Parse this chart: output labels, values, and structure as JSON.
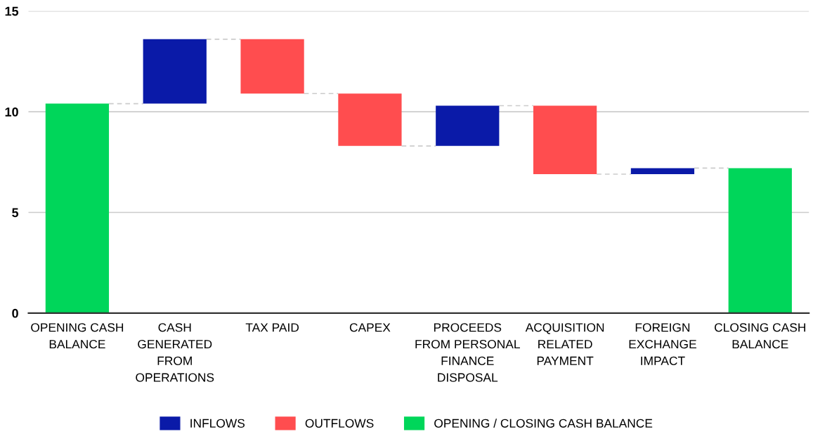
{
  "chart_data": {
    "type": "bar",
    "categories": [
      "OPENING CASH BALANCE",
      "CASH GENERATED FROM OPERATIONS",
      "TAX PAID",
      "CAPEX",
      "PROCEEDS FROM PERSONAL FINANCE DISPOSAL",
      "ACQUISITION RELATED PAYMENT",
      "FOREIGN EXCHANGE IMPACT",
      "CLOSING CASH BALANCE"
    ],
    "series": [
      {
        "name": "INFLOWS",
        "color": "#0a1aa8",
        "values": [
          null,
          3.2,
          null,
          null,
          2.0,
          null,
          0.3,
          null
        ],
        "base": [
          null,
          10.4,
          null,
          null,
          8.3,
          null,
          6.9,
          null
        ]
      },
      {
        "name": "OUTFLOWS",
        "color": "#ff4d4f",
        "values": [
          null,
          null,
          2.7,
          2.6,
          null,
          3.4,
          null,
          null
        ],
        "base": [
          null,
          null,
          10.9,
          8.3,
          null,
          6.9,
          null,
          null
        ]
      },
      {
        "name": "OPENING / CLOSING CASH BALANCE",
        "color": "#00d65a",
        "values": [
          10.4,
          null,
          null,
          null,
          null,
          null,
          null,
          7.2
        ]
      }
    ],
    "ylim": [
      0,
      15
    ],
    "yticks": [
      0,
      5,
      10,
      15
    ],
    "grid": "y",
    "legend": "bottom"
  }
}
